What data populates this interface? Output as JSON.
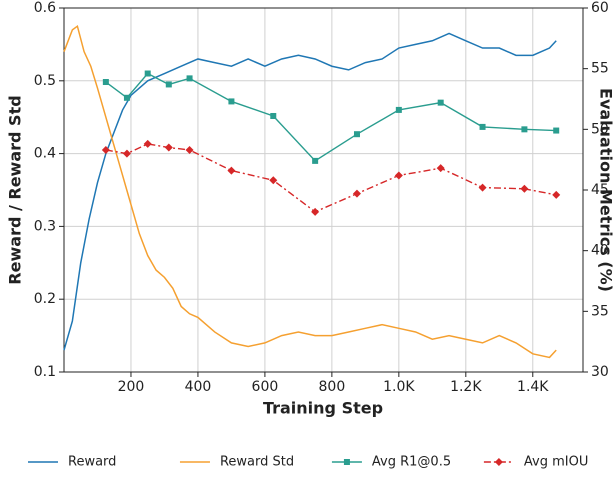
{
  "chart_data": {
    "type": "line",
    "xlabel": "Training Step",
    "ylabel": "Reward / Reward Std",
    "y2label": "Evaluation Metrics (%)",
    "xlim": [
      0,
      1550
    ],
    "xticks": [
      200,
      400,
      600,
      800,
      {
        "value": 1000,
        "label": "1.0K"
      },
      {
        "value": 1200,
        "label": "1.2K"
      },
      {
        "value": 1400,
        "label": "1.4K"
      }
    ],
    "ylim": [
      0.1,
      0.6
    ],
    "yticks": [
      0.1,
      0.2,
      0.3,
      0.4,
      0.5,
      0.6
    ],
    "y2lim": [
      30,
      60
    ],
    "y2ticks": [
      30,
      35,
      40,
      45,
      50,
      55,
      60
    ],
    "grid": true,
    "legend": "bottom",
    "series": [
      {
        "name": "Reward",
        "color": "#1f77b4",
        "style": "solid",
        "x": [
          0,
          25,
          50,
          75,
          100,
          125,
          150,
          175,
          200,
          250,
          300,
          350,
          400,
          450,
          500,
          550,
          600,
          650,
          700,
          750,
          800,
          850,
          900,
          950,
          1000,
          1050,
          1100,
          1150,
          1200,
          1250,
          1300,
          1350,
          1400,
          1450,
          1470
        ],
        "values": [
          0.13,
          0.17,
          0.25,
          0.31,
          0.36,
          0.4,
          0.43,
          0.46,
          0.48,
          0.5,
          0.51,
          0.52,
          0.53,
          0.525,
          0.52,
          0.53,
          0.52,
          0.53,
          0.535,
          0.53,
          0.52,
          0.515,
          0.525,
          0.53,
          0.545,
          0.55,
          0.555,
          0.565,
          0.555,
          0.545,
          0.545,
          0.535,
          0.535,
          0.545,
          0.555
        ]
      },
      {
        "name": "Reward Std",
        "color": "#f5a030",
        "style": "solid",
        "x": [
          0,
          25,
          40,
          60,
          80,
          100,
          125,
          150,
          175,
          200,
          225,
          250,
          275,
          300,
          325,
          350,
          375,
          400,
          450,
          500,
          550,
          600,
          650,
          700,
          750,
          800,
          850,
          900,
          950,
          1000,
          1050,
          1100,
          1150,
          1200,
          1250,
          1300,
          1350,
          1400,
          1450,
          1470
        ],
        "values": [
          0.54,
          0.57,
          0.575,
          0.54,
          0.52,
          0.49,
          0.45,
          0.41,
          0.37,
          0.33,
          0.29,
          0.26,
          0.24,
          0.23,
          0.215,
          0.19,
          0.18,
          0.175,
          0.155,
          0.14,
          0.135,
          0.14,
          0.15,
          0.155,
          0.15,
          0.15,
          0.155,
          0.16,
          0.165,
          0.16,
          0.155,
          0.145,
          0.15,
          0.145,
          0.14,
          0.15,
          0.14,
          0.125,
          0.12,
          0.13
        ]
      },
      {
        "name": "Avg R1@0.5",
        "color": "#2a9d8f",
        "style": "solid",
        "marker": "square",
        "axis": "y2",
        "x": [
          125,
          188,
          250,
          313,
          375,
          500,
          625,
          750,
          875,
          1000,
          1125,
          1250,
          1375,
          1470
        ],
        "values": [
          53.9,
          52.6,
          54.6,
          53.7,
          54.2,
          52.3,
          51.1,
          47.4,
          49.6,
          51.6,
          52.2,
          50.2,
          50.0,
          49.9
        ]
      },
      {
        "name": "Avg mIOU",
        "color": "#d62728",
        "style": "dashdot",
        "marker": "diamond",
        "axis": "y2",
        "x": [
          125,
          188,
          250,
          313,
          375,
          500,
          625,
          750,
          875,
          1000,
          1125,
          1250,
          1375,
          1470
        ],
        "values": [
          48.3,
          48.0,
          48.8,
          48.5,
          48.3,
          46.6,
          45.8,
          43.2,
          44.7,
          46.2,
          46.8,
          45.2,
          45.1,
          44.6
        ]
      }
    ]
  }
}
